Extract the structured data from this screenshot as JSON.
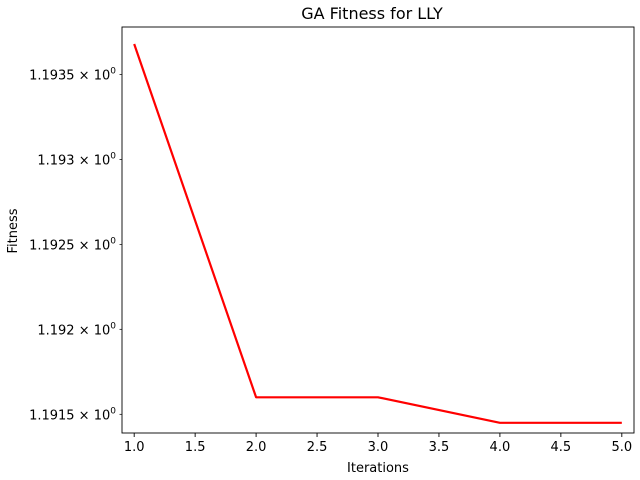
{
  "chart_data": {
    "type": "line",
    "title": "GA Fitness for LLY",
    "xlabel": "Iterations",
    "ylabel": "Fitness",
    "yscale": "log",
    "grid": false,
    "x": [
      1.0,
      2.0,
      3.0,
      4.0,
      5.0
    ],
    "series": [
      {
        "values": [
          1.19368,
          1.1916,
          1.1916,
          1.19145,
          1.19145
        ],
        "color": "#ff0000"
      }
    ],
    "xlim": [
      0.9,
      5.1
    ],
    "ylim": [
      1.19139,
      1.19378
    ],
    "xticks": [
      {
        "value": 1.0,
        "label": "1.0"
      },
      {
        "value": 1.5,
        "label": "1.5"
      },
      {
        "value": 2.0,
        "label": "2.0"
      },
      {
        "value": 2.5,
        "label": "2.5"
      },
      {
        "value": 3.0,
        "label": "3.0"
      },
      {
        "value": 3.5,
        "label": "3.5"
      },
      {
        "value": 4.0,
        "label": "4.0"
      },
      {
        "value": 4.5,
        "label": "4.5"
      },
      {
        "value": 5.0,
        "label": "5.0"
      }
    ],
    "yticks": [
      {
        "value": 1.1935,
        "label": "1.1935",
        "exponent": "0"
      },
      {
        "value": 1.193,
        "label": "1.193",
        "exponent": "0"
      },
      {
        "value": 1.1925,
        "label": "1.1925",
        "exponent": "0"
      },
      {
        "value": 1.192,
        "label": "1.192",
        "exponent": "0"
      },
      {
        "value": 1.1915,
        "label": "1.1915",
        "exponent": "0"
      }
    ],
    "tick_base": "10"
  }
}
